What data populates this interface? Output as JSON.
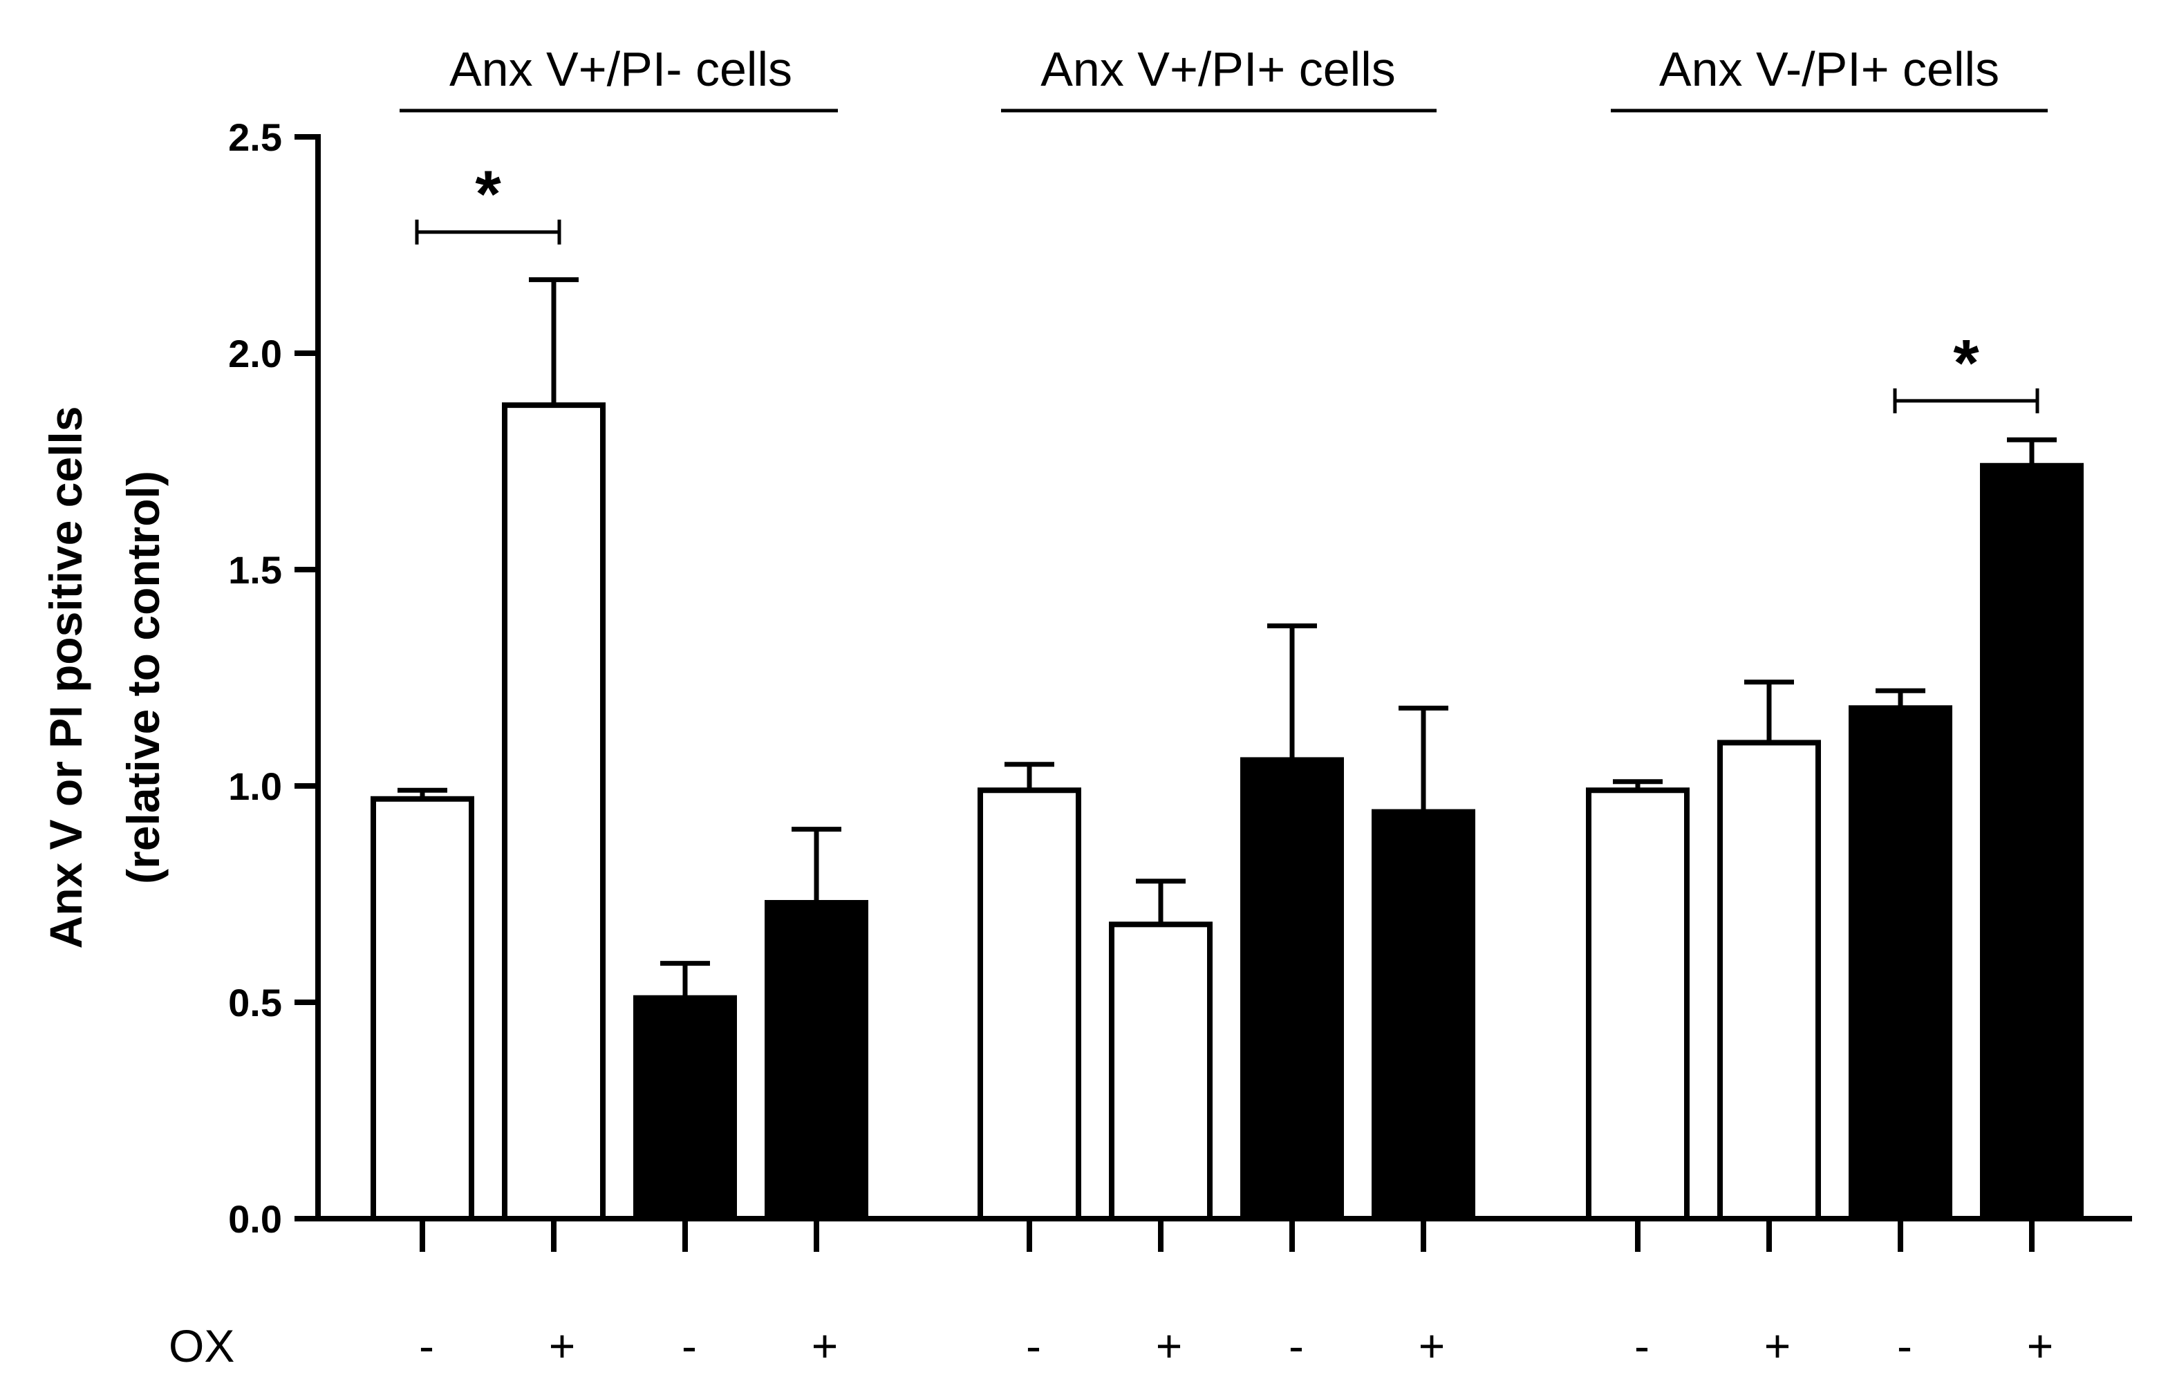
{
  "chart_data": {
    "type": "bar",
    "title": "",
    "xlabel": "",
    "ylabel_line1": "Anx V or PI positive cells",
    "ylabel_line2": "(relative to control)",
    "ylim": [
      0,
      2.5
    ],
    "yticks": [
      {
        "value": 0.0,
        "label": "0.0"
      },
      {
        "value": 0.5,
        "label": "0.5"
      },
      {
        "value": 1.0,
        "label": "1.0"
      },
      {
        "value": 1.5,
        "label": "1.5"
      },
      {
        "value": 2.0,
        "label": "2.0"
      },
      {
        "value": 2.5,
        "label": "2.5"
      }
    ],
    "treatment_row_label": "OX",
    "groups": [
      {
        "title": "Anx V+/PI- cells",
        "bars": [
          {
            "ox": "-",
            "fill": "white",
            "value": 0.97,
            "error": 0.02
          },
          {
            "ox": "+",
            "fill": "white",
            "value": 1.88,
            "error": 0.29
          },
          {
            "ox": "-",
            "fill": "black",
            "value": 0.51,
            "error": 0.08
          },
          {
            "ox": "+",
            "fill": "black",
            "value": 0.73,
            "error": 0.17
          }
        ],
        "significance": {
          "from_bar": 0,
          "to_bar": 1,
          "level": 2.28,
          "label": "*"
        }
      },
      {
        "title": "Anx V+/PI+ cells",
        "bars": [
          {
            "ox": "-",
            "fill": "white",
            "value": 0.99,
            "error": 0.06
          },
          {
            "ox": "+",
            "fill": "white",
            "value": 0.68,
            "error": 0.1
          },
          {
            "ox": "-",
            "fill": "black",
            "value": 1.06,
            "error": 0.31
          },
          {
            "ox": "+",
            "fill": "black",
            "value": 0.94,
            "error": 0.24
          }
        ],
        "significance": null
      },
      {
        "title": "Anx V-/PI+ cells",
        "bars": [
          {
            "ox": "-",
            "fill": "white",
            "value": 0.99,
            "error": 0.02
          },
          {
            "ox": "+",
            "fill": "white",
            "value": 1.1,
            "error": 0.14
          },
          {
            "ox": "-",
            "fill": "black",
            "value": 1.18,
            "error": 0.04
          },
          {
            "ox": "+",
            "fill": "black",
            "value": 1.74,
            "error": 0.06
          }
        ],
        "significance": {
          "from_bar": 2,
          "to_bar": 3,
          "level": 1.89,
          "label": "*"
        }
      }
    ],
    "colors": {
      "white_bar": "#ffffff",
      "black_bar": "#000000",
      "stroke": "#000000"
    }
  }
}
